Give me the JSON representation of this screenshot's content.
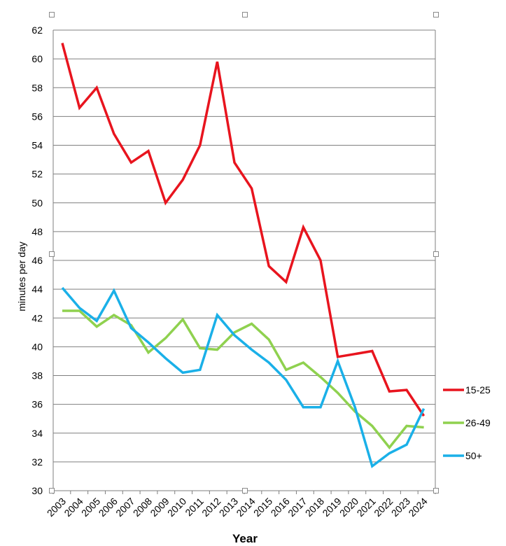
{
  "chart_data": {
    "type": "line",
    "title": "",
    "xlabel": "Year",
    "ylabel": "minutes per day",
    "ylim": [
      30,
      62
    ],
    "yticks": [
      30,
      32,
      34,
      36,
      38,
      40,
      42,
      44,
      46,
      48,
      50,
      52,
      54,
      56,
      58,
      60,
      62
    ],
    "grid": true,
    "legend_position": "right",
    "x": [
      "2003",
      "2004",
      "2005",
      "2006",
      "2007",
      "2008",
      "2009",
      "2010",
      "2011",
      "2012",
      "2013",
      "2014",
      "2015",
      "2016",
      "2017",
      "2018",
      "2019",
      "2020",
      "2021",
      "2022",
      "2023",
      "2024"
    ],
    "series": [
      {
        "name": "15-25",
        "color": "#e8141e",
        "values": [
          61.1,
          56.6,
          58.0,
          54.8,
          52.8,
          53.6,
          50.0,
          51.6,
          54.0,
          59.8,
          52.8,
          51.0,
          45.6,
          44.5,
          48.3,
          46.0,
          39.3,
          39.5,
          39.7,
          36.9,
          37.0,
          35.2
        ]
      },
      {
        "name": "26-49",
        "color": "#8fd14f",
        "values": [
          42.5,
          42.5,
          41.4,
          42.2,
          41.5,
          39.6,
          40.6,
          41.9,
          39.9,
          39.8,
          41.0,
          41.6,
          40.5,
          38.4,
          38.9,
          37.9,
          36.8,
          35.5,
          34.5,
          33.0,
          34.5,
          34.4
        ]
      },
      {
        "name": "50+",
        "color": "#1ab0e8",
        "values": [
          44.1,
          42.7,
          41.8,
          43.9,
          41.3,
          40.3,
          39.2,
          38.2,
          38.4,
          42.2,
          40.8,
          39.8,
          38.9,
          37.7,
          35.8,
          35.8,
          39.0,
          35.8,
          31.7,
          32.6,
          33.2,
          35.7
        ]
      }
    ]
  }
}
